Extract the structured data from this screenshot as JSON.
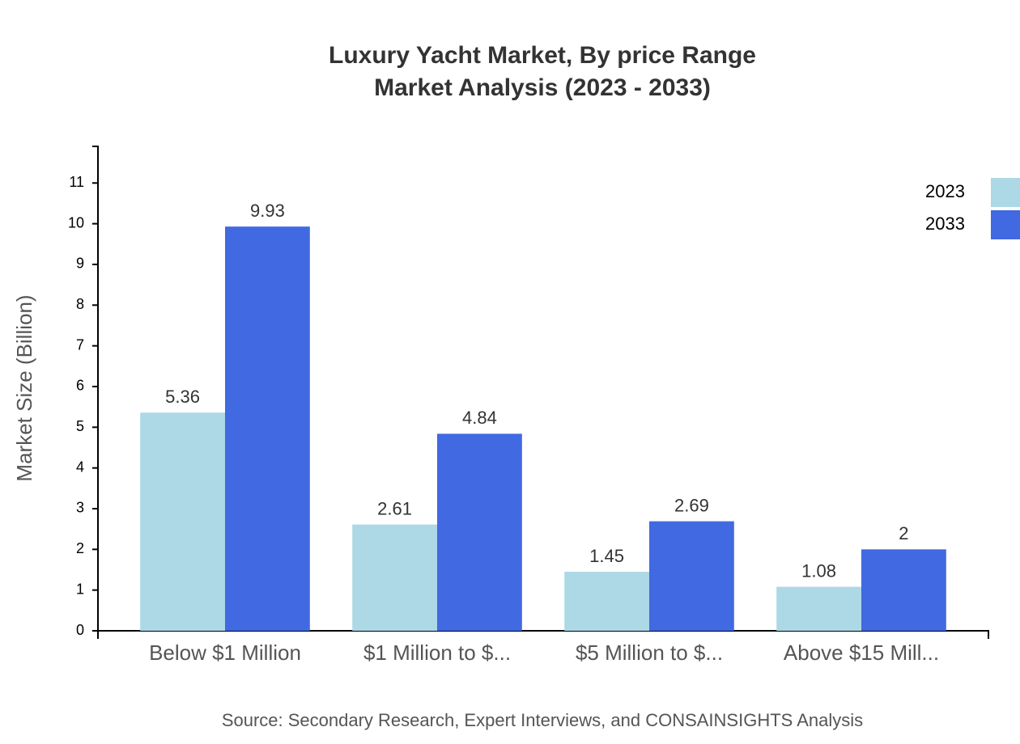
{
  "chart_data": {
    "type": "bar",
    "title": "Luxury Yacht Market, By price Range",
    "subtitle": "Market Analysis (2023 - 2033)",
    "y_label": "Market Size (Billion)",
    "source": "Source: Secondary Research, Expert Interviews, and CONSAINSIGHTS Analysis",
    "categories": [
      "Below $1 Million",
      "$1 Million to $...",
      "$5 Million to $...",
      "Above $15 Mill..."
    ],
    "series": [
      {
        "name": "2023",
        "color": "#add8e6",
        "values": [
          5.36,
          2.61,
          1.45,
          1.08
        ]
      },
      {
        "name": "2033",
        "color": "#4169e1",
        "values": [
          9.93,
          4.84,
          2.69,
          2
        ]
      }
    ],
    "ylim": [
      0,
      11.9
    ],
    "yticks": [
      0,
      1,
      2,
      3,
      4,
      5,
      6,
      7,
      8,
      9,
      10,
      11
    ],
    "grid": false,
    "legend": "top-right"
  }
}
